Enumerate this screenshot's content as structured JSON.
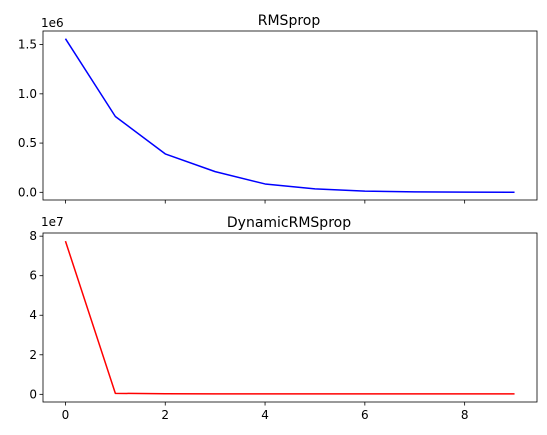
{
  "chart_data": [
    {
      "type": "line",
      "title": "RMSprop",
      "xlabel": "",
      "ylabel": "",
      "offset_text": "1e6",
      "x": [
        0,
        1,
        2,
        3,
        4,
        5,
        6,
        7,
        8,
        9
      ],
      "series": [
        {
          "color": "#0000ff",
          "values": [
            1.56,
            0.77,
            0.39,
            0.21,
            0.085,
            0.035,
            0.012,
            0.004,
            0.002,
            0.001
          ]
        }
      ],
      "xlim": [
        -0.45,
        9.45
      ],
      "ylim": [
        -0.078,
        1.638
      ],
      "xticks": [
        0,
        2,
        4,
        6,
        8
      ],
      "xtick_labels_visible": false,
      "yticks": [
        0.0,
        0.5,
        1.0,
        1.5
      ],
      "ytick_labels": [
        "0.0",
        "0.5",
        "1.0",
        "1.5"
      ],
      "grid": false
    },
    {
      "type": "line",
      "title": "DynamicRMSprop",
      "xlabel": "",
      "ylabel": "",
      "offset_text": "1e7",
      "x": [
        0,
        1,
        2,
        3,
        4,
        5,
        6,
        7,
        8,
        9
      ],
      "series": [
        {
          "color": "#ff0000",
          "values": [
            7.75,
            0.05,
            0.03,
            0.025,
            0.02,
            0.02,
            0.02,
            0.02,
            0.02,
            0.02
          ]
        }
      ],
      "xlim": [
        -0.45,
        9.45
      ],
      "ylim": [
        -0.388,
        8.16
      ],
      "xticks": [
        0,
        2,
        4,
        6,
        8
      ],
      "xtick_labels": [
        "0",
        "2",
        "4",
        "6",
        "8"
      ],
      "xtick_labels_visible": true,
      "yticks": [
        0,
        2,
        4,
        6,
        8
      ],
      "ytick_labels": [
        "0",
        "2",
        "4",
        "6",
        "8"
      ],
      "grid": false
    }
  ]
}
